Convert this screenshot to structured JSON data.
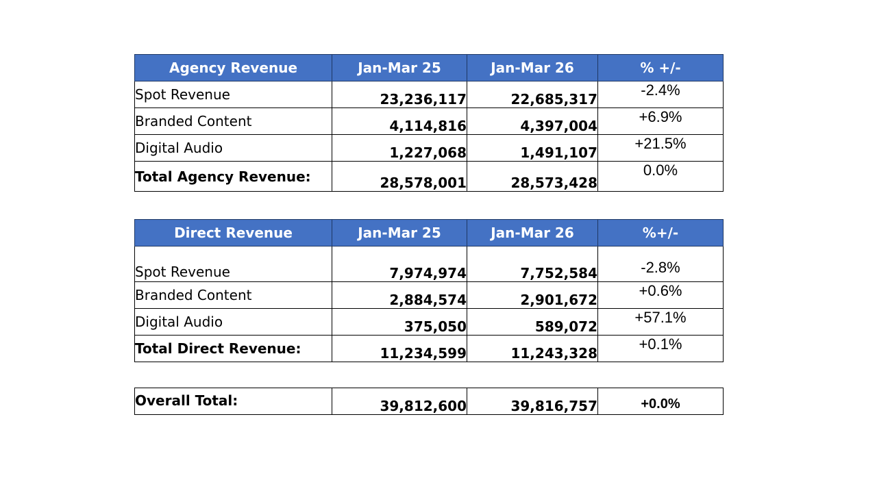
{
  "agency": {
    "headers": [
      "Agency Revenue",
      "Jan-Mar 25",
      "Jan-Mar 26",
      "% +/-"
    ],
    "rows": [
      {
        "label": "Spot Revenue",
        "q25": "23,236,117",
        "q26": "22,685,317",
        "pct": "-2.4%"
      },
      {
        "label": "Branded Content",
        "q25": "4,114,816",
        "q26": "4,397,004",
        "pct": "+6.9%"
      },
      {
        "label": "Digital Audio",
        "q25": "1,227,068",
        "q26": "1,491,107",
        "pct": "+21.5%"
      }
    ],
    "total": {
      "label": "Total Agency Revenue:",
      "q25": "28,578,001",
      "q26": "28,573,428",
      "pct": "0.0%"
    }
  },
  "direct": {
    "headers": [
      "Direct Revenue",
      "Jan-Mar 25",
      "Jan-Mar 26",
      "%+/-"
    ],
    "rows": [
      {
        "label": "Spot Revenue",
        "q25": "7,974,974",
        "q26": "7,752,584",
        "pct": "-2.8%"
      },
      {
        "label": "Branded Content",
        "q25": "2,884,574",
        "q26": "2,901,672",
        "pct": "+0.6%"
      },
      {
        "label": "Digital Audio",
        "q25": "375,050",
        "q26": "589,072",
        "pct": "+57.1%"
      }
    ],
    "total": {
      "label": "Total Direct Revenue:",
      "q25": "11,234,599",
      "q26": "11,243,328",
      "pct": "+0.1%"
    }
  },
  "overall": {
    "label": "Overall Total:",
    "q25": "39,812,600",
    "q26": "39,816,757",
    "pct": "+0.0%"
  },
  "colors": {
    "header_bg": "#4472c4",
    "header_text": "#ffffff"
  }
}
